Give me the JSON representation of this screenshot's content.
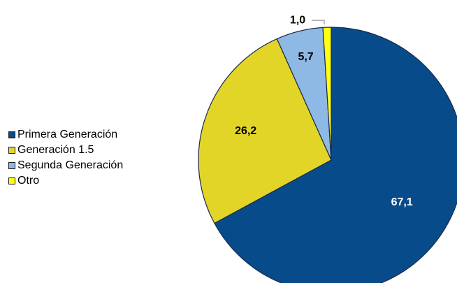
{
  "chart_data": {
    "type": "pie",
    "title": "",
    "categories": [
      "Primera Generación",
      "Generación 1.5",
      "Segunda Generación",
      "Otro"
    ],
    "values": [
      67.1,
      26.2,
      5.7,
      1.0
    ],
    "data_labels": [
      "67,1",
      "26,2",
      "5,7",
      "1,0"
    ],
    "colors": [
      "#084B8A",
      "#E3D528",
      "#8EB9E4",
      "#FFFF14"
    ],
    "label_colors": [
      "#FFFFFF",
      "#000000",
      "#000000",
      "#000000"
    ],
    "start_angle_deg": 0,
    "direction": "clockwise",
    "legend_position": "left"
  }
}
